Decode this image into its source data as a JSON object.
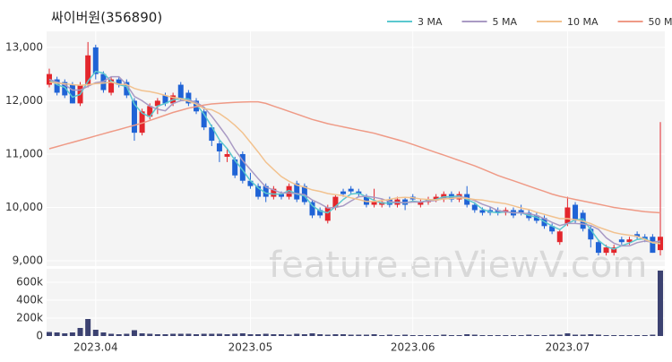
{
  "title": "싸이버원(356890)",
  "watermark": "feature.enViewV.com",
  "chart_data": [
    {
      "type": "candlestick",
      "up_color": "#e3262c",
      "down_color": "#1f63d6",
      "grid": true,
      "ylim": [
        8900,
        13300
      ],
      "yticks": [
        {
          "value": 9000,
          "label": "9,000"
        },
        {
          "value": 10000,
          "label": "10,000"
        },
        {
          "value": 11000,
          "label": "11,000"
        },
        {
          "value": 12000,
          "label": "12,000"
        },
        {
          "value": 13000,
          "label": "13,000"
        }
      ],
      "open": [
        12300,
        12400,
        12350,
        12300,
        11950,
        12300,
        13000,
        12500,
        12150,
        12400,
        12350,
        12000,
        11400,
        11700,
        11900,
        12100,
        11950,
        12300,
        12150,
        12000,
        11800,
        11500,
        11200,
        10950,
        10900,
        11000,
        10500,
        10400,
        10400,
        10200,
        10250,
        10200,
        10450,
        10400,
        10100,
        9950,
        9750,
        10000,
        10300,
        10350,
        10300,
        10200,
        10050,
        10050,
        10150,
        10050,
        10150,
        10200,
        10050,
        10100,
        10150,
        10150,
        10250,
        10150,
        10250,
        10050,
        9950,
        9950,
        9950,
        9900,
        9950,
        9950,
        9900,
        9850,
        9800,
        9650,
        9350,
        9700,
        10050,
        9900,
        9600,
        9350,
        9150,
        9150,
        9400,
        9350,
        9500,
        9450,
        9450,
        9200
      ],
      "high": [
        12600,
        12450,
        12400,
        12350,
        12350,
        13100,
        13050,
        12550,
        12450,
        12450,
        12400,
        12050,
        11850,
        11950,
        12050,
        12150,
        12150,
        12350,
        12200,
        12050,
        11850,
        11550,
        11250,
        11100,
        10950,
        11050,
        10650,
        10450,
        10450,
        10400,
        10300,
        10450,
        10500,
        10450,
        10150,
        10000,
        10050,
        10250,
        10350,
        10400,
        10350,
        10250,
        10350,
        10150,
        10200,
        10200,
        10200,
        10250,
        10150,
        10200,
        10250,
        10300,
        10300,
        10300,
        10400,
        10100,
        10000,
        10000,
        10000,
        10000,
        10000,
        10050,
        9950,
        9900,
        9850,
        9700,
        9600,
        10200,
        10100,
        9950,
        9650,
        9400,
        9300,
        9300,
        9450,
        9450,
        9550,
        9500,
        9500,
        11600
      ],
      "low": [
        12250,
        12100,
        12050,
        11950,
        11900,
        12250,
        12400,
        12150,
        12100,
        12250,
        12050,
        11250,
        11350,
        11650,
        11750,
        11900,
        11900,
        12000,
        11900,
        11750,
        11450,
        11150,
        10850,
        10850,
        10550,
        10450,
        10350,
        10150,
        10100,
        10150,
        10150,
        10150,
        10100,
        10050,
        9800,
        9800,
        9700,
        9950,
        10200,
        10250,
        10200,
        10000,
        10000,
        10000,
        10000,
        10000,
        9950,
        10100,
        10000,
        10050,
        10100,
        10100,
        10100,
        10100,
        10000,
        9900,
        9850,
        9850,
        9850,
        9850,
        9800,
        9850,
        9750,
        9700,
        9600,
        9500,
        9300,
        9650,
        9700,
        9550,
        9250,
        9100,
        9100,
        9100,
        9300,
        9300,
        9400,
        9350,
        9150,
        9100
      ],
      "close": [
        12500,
        12150,
        12100,
        11950,
        12300,
        12850,
        12500,
        12200,
        12400,
        12300,
        12100,
        11400,
        11800,
        11900,
        12000,
        11950,
        12100,
        12050,
        11950,
        11800,
        11500,
        11250,
        11050,
        11000,
        10600,
        10500,
        10400,
        10200,
        10200,
        10350,
        10200,
        10400,
        10150,
        10100,
        9850,
        9850,
        10000,
        10200,
        10250,
        10300,
        10250,
        10050,
        10100,
        10100,
        10050,
        10150,
        10050,
        10150,
        10100,
        10150,
        10200,
        10250,
        10150,
        10250,
        10050,
        9950,
        9900,
        9900,
        9900,
        9950,
        9850,
        9900,
        9800,
        9750,
        9650,
        9550,
        9550,
        10000,
        9750,
        9600,
        9400,
        9150,
        9250,
        9250,
        9350,
        9400,
        9450,
        9400,
        9150,
        9450
      ],
      "series": [
        {
          "name": "3 MA",
          "color": "#5bc8cf",
          "values": [
            12400,
            12300,
            12250,
            12067,
            12117,
            12367,
            12550,
            12517,
            12367,
            12300,
            12267,
            11933,
            11767,
            11700,
            11900,
            11950,
            12017,
            12033,
            12033,
            11933,
            11750,
            11517,
            11267,
            11100,
            10883,
            10700,
            10500,
            10367,
            10267,
            10250,
            10250,
            10317,
            10250,
            10217,
            10033,
            9933,
            9900,
            10017,
            10150,
            10250,
            10267,
            10200,
            10133,
            10083,
            10083,
            10100,
            10083,
            10117,
            10100,
            10133,
            10150,
            10200,
            10200,
            10217,
            10150,
            10083,
            9967,
            9917,
            9900,
            9917,
            9900,
            9900,
            9850,
            9817,
            9733,
            9650,
            9583,
            9700,
            9767,
            9783,
            9583,
            9383,
            9267,
            9217,
            9283,
            9333,
            9400,
            9417,
            9333,
            9333
          ]
        },
        {
          "name": "5 MA",
          "color": "#a99ac4",
          "values": [
            12400,
            12350,
            12300,
            12200,
            12200,
            12270,
            12340,
            12360,
            12450,
            12450,
            12300,
            12080,
            12000,
            11900,
            11840,
            11810,
            11950,
            12000,
            12010,
            11970,
            11880,
            11710,
            11520,
            11320,
            11080,
            10880,
            10710,
            10540,
            10380,
            10330,
            10270,
            10270,
            10260,
            10240,
            10140,
            10070,
            9990,
            10000,
            10030,
            10120,
            10200,
            10210,
            10190,
            10160,
            10110,
            10090,
            10090,
            10100,
            10100,
            10120,
            10130,
            10170,
            10170,
            10200,
            10180,
            10130,
            10060,
            10010,
            9940,
            9920,
            9900,
            9900,
            9880,
            9850,
            9790,
            9720,
            9660,
            9700,
            9700,
            9690,
            9660,
            9590,
            9430,
            9330,
            9280,
            9280,
            9340,
            9370,
            9350,
            9370
          ]
        },
        {
          "name": "10 MA",
          "color": "#f2c28f",
          "values": [
            12350,
            12330,
            12320,
            12300,
            12290,
            12300,
            12320,
            12330,
            12350,
            12310,
            12300,
            12230,
            12190,
            12170,
            12140,
            12100,
            12060,
            12040,
            11990,
            11940,
            11850,
            11830,
            11760,
            11660,
            11540,
            11400,
            11220,
            11040,
            10850,
            10710,
            10580,
            10490,
            10420,
            10380,
            10330,
            10300,
            10260,
            10240,
            10220,
            10180,
            10150,
            10110,
            10110,
            10130,
            10150,
            10180,
            10190,
            10180,
            10160,
            10150,
            10140,
            10160,
            10170,
            10180,
            10170,
            10150,
            10140,
            10110,
            10090,
            10070,
            10030,
            9990,
            9960,
            9910,
            9870,
            9830,
            9790,
            9790,
            9770,
            9740,
            9700,
            9630,
            9580,
            9530,
            9500,
            9480,
            9460,
            9400,
            9340,
            9320
          ]
        },
        {
          "name": "50 MA",
          "color": "#ef9a86",
          "values": [
            11100,
            11140,
            11180,
            11220,
            11260,
            11300,
            11340,
            11380,
            11420,
            11460,
            11500,
            11540,
            11580,
            11630,
            11680,
            11730,
            11780,
            11820,
            11860,
            11890,
            11920,
            11940,
            11950,
            11960,
            11970,
            11975,
            11980,
            11980,
            11950,
            11900,
            11850,
            11800,
            11750,
            11700,
            11650,
            11610,
            11570,
            11540,
            11510,
            11480,
            11450,
            11420,
            11390,
            11350,
            11310,
            11270,
            11230,
            11180,
            11130,
            11080,
            11030,
            10980,
            10930,
            10880,
            10830,
            10780,
            10720,
            10660,
            10600,
            10550,
            10500,
            10450,
            10400,
            10350,
            10300,
            10250,
            10210,
            10180,
            10150,
            10120,
            10090,
            10060,
            10030,
            10000,
            9980,
            9960,
            9940,
            9920,
            9910,
            9900
          ]
        }
      ]
    },
    {
      "type": "bar",
      "color": "#3c4271",
      "grid": true,
      "ylim": [
        0,
        750000
      ],
      "yticks": [
        0,
        {
          "value": 200000,
          "label": "200k"
        },
        {
          "value": 400000,
          "label": "400k"
        },
        {
          "value": 600000,
          "label": "600k"
        }
      ],
      "categories": [
        null,
        null,
        null,
        null,
        null,
        null,
        "2023.04",
        null,
        null,
        null,
        null,
        null,
        null,
        null,
        null,
        null,
        null,
        null,
        null,
        null,
        null,
        null,
        null,
        null,
        null,
        null,
        "2023.05",
        null,
        null,
        null,
        null,
        null,
        null,
        null,
        null,
        null,
        null,
        null,
        null,
        null,
        null,
        null,
        null,
        null,
        null,
        null,
        null,
        "2023.06",
        null,
        null,
        null,
        null,
        null,
        null,
        null,
        null,
        null,
        null,
        null,
        null,
        null,
        null,
        null,
        null,
        null,
        null,
        null,
        "2023.07",
        null,
        null,
        null,
        null,
        null,
        null,
        null,
        null,
        null,
        null,
        null,
        null
      ],
      "values": [
        45000,
        40000,
        30000,
        40000,
        90000,
        190000,
        70000,
        40000,
        25000,
        20000,
        25000,
        65000,
        30000,
        25000,
        20000,
        20000,
        25000,
        25000,
        25000,
        20000,
        25000,
        25000,
        25000,
        20000,
        25000,
        30000,
        20000,
        20000,
        25000,
        20000,
        20000,
        15000,
        25000,
        20000,
        30000,
        20000,
        15000,
        20000,
        20000,
        15000,
        15000,
        15000,
        20000,
        10000,
        15000,
        10000,
        15000,
        10000,
        10000,
        10000,
        10000,
        15000,
        10000,
        10000,
        20000,
        15000,
        10000,
        10000,
        10000,
        10000,
        10000,
        10000,
        15000,
        10000,
        10000,
        15000,
        15000,
        30000,
        15000,
        15000,
        20000,
        15000,
        10000,
        10000,
        10000,
        10000,
        10000,
        10000,
        15000,
        730000
      ]
    }
  ]
}
